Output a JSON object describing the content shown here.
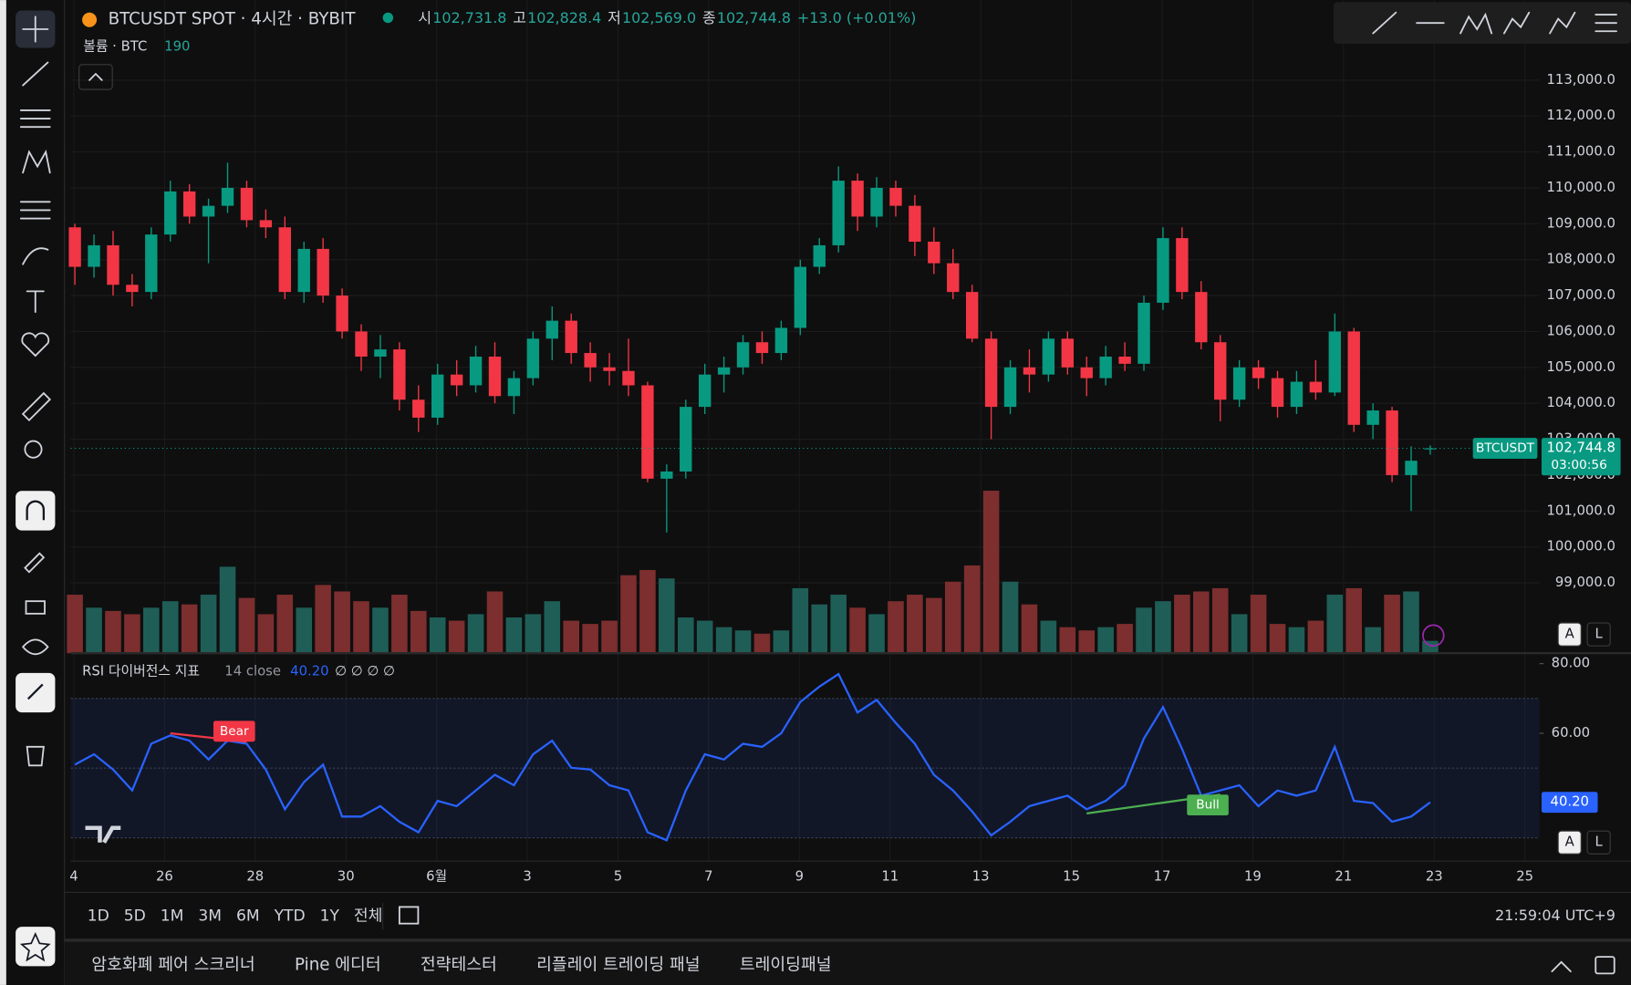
{
  "header": {
    "symbol": "BTCUSDT SPOT · 4시간 · BYBIT",
    "ohlc": [
      {
        "label": "시",
        "value": "102,731.8"
      },
      {
        "label": "고",
        "value": "102,828.4"
      },
      {
        "label": "저",
        "value": "102,569.0"
      },
      {
        "label": "종",
        "value": "102,744.8"
      }
    ],
    "change": "+13.0 (+0.01%)"
  },
  "chart_data": {
    "type": "candlestick",
    "symbol_tag": "BTCUSDT",
    "countdown": "03:00:56",
    "price_label": "102,744.8",
    "up_color": "#089981",
    "down_color": "#f23645",
    "grid": true,
    "open": [
      108900,
      107800,
      108400,
      107300,
      107100,
      108700,
      109900,
      109200,
      109500,
      110000,
      109100,
      108900,
      107100,
      108300,
      107000,
      106000,
      105300,
      105500,
      104100,
      103600,
      104800,
      104500,
      105300,
      104200,
      104700,
      105800,
      106300,
      105400,
      105000,
      104900,
      104500,
      101900,
      102100,
      103900,
      104800,
      105000,
      105700,
      105400,
      106100,
      107800,
      108400,
      110200,
      109200,
      110000,
      109500,
      108500,
      107900,
      107100,
      105800,
      103900,
      105000,
      104800,
      105800,
      105000,
      104700,
      105300,
      105100,
      106800,
      108600,
      107100,
      105700,
      104100,
      105000,
      104700,
      103900,
      104600,
      104300,
      106000,
      103400,
      103800,
      102000,
      102731.8
    ],
    "high": [
      109000,
      108700,
      108800,
      107600,
      108900,
      110200,
      110100,
      109700,
      110700,
      110200,
      109400,
      109200,
      108500,
      108600,
      107200,
      106200,
      105900,
      105700,
      104500,
      105100,
      105200,
      105600,
      105700,
      104900,
      106000,
      106700,
      106500,
      105700,
      105400,
      105800,
      104600,
      102300,
      104100,
      105100,
      105300,
      105900,
      106000,
      106300,
      108000,
      108600,
      110600,
      110400,
      110300,
      110200,
      109800,
      108900,
      108300,
      107300,
      106000,
      105200,
      105500,
      106000,
      106000,
      105300,
      105600,
      105700,
      107000,
      108900,
      108900,
      107400,
      105900,
      105200,
      105200,
      104900,
      104900,
      105200,
      106500,
      106100,
      104000,
      103900,
      102800,
      102828.4
    ],
    "low": [
      107300,
      107500,
      107000,
      106700,
      106900,
      108500,
      109000,
      107900,
      109300,
      108900,
      108600,
      106900,
      106800,
      106800,
      105800,
      104900,
      104700,
      103800,
      103200,
      103400,
      104200,
      104300,
      104000,
      103700,
      104500,
      105200,
      105100,
      104600,
      104500,
      104200,
      101800,
      100400,
      101900,
      103700,
      104300,
      104800,
      105100,
      105200,
      105900,
      107600,
      108200,
      108800,
      108900,
      109200,
      108100,
      107600,
      106900,
      105700,
      103000,
      103700,
      104300,
      104600,
      104800,
      104200,
      104500,
      104900,
      104900,
      106600,
      106900,
      105500,
      103500,
      103900,
      104400,
      103600,
      103700,
      104100,
      104200,
      103200,
      103000,
      101800,
      101000,
      102569
    ],
    "close": [
      107800,
      108400,
      107300,
      107100,
      108700,
      109900,
      109200,
      109500,
      110000,
      109100,
      108900,
      107100,
      108300,
      107000,
      106000,
      105300,
      105500,
      104100,
      103600,
      104800,
      104500,
      105300,
      104200,
      104700,
      105800,
      106300,
      105400,
      105000,
      104900,
      104500,
      101900,
      102100,
      103900,
      104800,
      105000,
      105700,
      105400,
      106100,
      107800,
      108400,
      110200,
      109200,
      110000,
      109500,
      108500,
      107900,
      107100,
      105800,
      103900,
      105000,
      104800,
      105800,
      105000,
      104700,
      105300,
      105100,
      106800,
      108600,
      107100,
      105700,
      104100,
      105000,
      104700,
      103900,
      104600,
      104300,
      106000,
      103400,
      103800,
      102000,
      102400,
      102744.8
    ],
    "ylim": [
      97040,
      115230
    ],
    "yticks": [
      {
        "value": 99000,
        "label": "99,000.0"
      },
      {
        "value": 100000,
        "label": "100,000.0"
      },
      {
        "value": 101000,
        "label": "101,000.0"
      },
      {
        "value": 102000,
        "label": "102,000.0"
      },
      {
        "value": 103000,
        "label": "103,000.0"
      },
      {
        "value": 104000,
        "label": "104,000.0"
      },
      {
        "value": 105000,
        "label": "105,000.0"
      },
      {
        "value": 106000,
        "label": "106,000.0"
      },
      {
        "value": 107000,
        "label": "107,000.0"
      },
      {
        "value": 108000,
        "label": "108,000.0"
      },
      {
        "value": 109000,
        "label": "109,000.0"
      },
      {
        "value": 110000,
        "label": "110,000.0"
      },
      {
        "value": 111000,
        "label": "111,000.0"
      },
      {
        "value": 112000,
        "label": "112,000.0"
      },
      {
        "value": 113000,
        "label": "113,000.0"
      }
    ],
    "x_labels": [
      "4",
      "26",
      "28",
      "30",
      "6월",
      "3",
      "5",
      "7",
      "9",
      "11",
      "13",
      "15",
      "17",
      "19",
      "21",
      "23",
      "25"
    ],
    "volume": {
      "name": "볼륨 · BTC",
      "last_label": "190",
      "ylim": [
        0,
        3200
      ],
      "values": [
        900,
        700,
        650,
        600,
        700,
        800,
        750,
        900,
        1330,
        850,
        600,
        900,
        700,
        1050,
        950,
        800,
        700,
        900,
        650,
        550,
        500,
        600,
        950,
        550,
        600,
        800,
        500,
        450,
        500,
        1200,
        1280,
        1150,
        550,
        500,
        400,
        350,
        300,
        350,
        1000,
        750,
        900,
        700,
        600,
        800,
        900,
        850,
        1100,
        1350,
        2500,
        1100,
        750,
        500,
        400,
        350,
        400,
        450,
        700,
        800,
        900,
        950,
        1000,
        600,
        900,
        450,
        400,
        500,
        900,
        1000,
        400,
        900,
        950,
        190
      ]
    },
    "rsi": {
      "title": "RSI 다이버전스 지표",
      "params": "14 close",
      "value_label": "40.20",
      "na": "∅ ∅ ∅ ∅",
      "color": "#2962ff",
      "values": [
        51.0,
        54.0,
        49.6,
        43.6,
        57.0,
        59.4,
        57.9,
        52.5,
        57.9,
        57.0,
        49.6,
        38.2,
        46.0,
        51.0,
        36.1,
        36.1,
        39.1,
        34.6,
        31.6,
        40.6,
        39.1,
        43.6,
        48.1,
        45.1,
        54.0,
        57.9,
        50.1,
        49.6,
        45.1,
        43.6,
        31.6,
        29.3,
        43.6,
        54.0,
        52.5,
        57.0,
        56.1,
        60.0,
        69.0,
        73.4,
        77.0,
        66.0,
        69.6,
        63.0,
        57.0,
        48.1,
        43.6,
        37.6,
        30.7,
        34.6,
        39.1,
        40.6,
        42.1,
        38.2,
        40.6,
        45.1,
        58.5,
        67.5,
        55.5,
        42.1,
        43.6,
        45.1,
        39.1,
        43.6,
        42.1,
        43.6,
        56.1,
        40.6,
        40.0,
        34.6,
        36.1,
        40.2
      ],
      "ylim": [
        23.3,
        83.0
      ],
      "yticks": [
        {
          "value": 80,
          "label": "80.00"
        },
        {
          "value": 60,
          "label": "60.00"
        }
      ],
      "band": [
        30,
        70
      ],
      "mid": 50,
      "annotations": [
        {
          "text": "Bear"
        },
        {
          "text": "Bull"
        }
      ]
    }
  },
  "scale_buttons": [
    "A",
    "L"
  ],
  "ranges": [
    "1D",
    "5D",
    "1M",
    "3M",
    "6M",
    "YTD",
    "1Y",
    "전체"
  ],
  "clock": "21:59:04 UTC+9",
  "tabs": [
    "암호화폐 페어 스크리너",
    "Pine 에디터",
    "전략테스터",
    "리플레이 트레이딩 패널",
    "트레이딩패널"
  ]
}
